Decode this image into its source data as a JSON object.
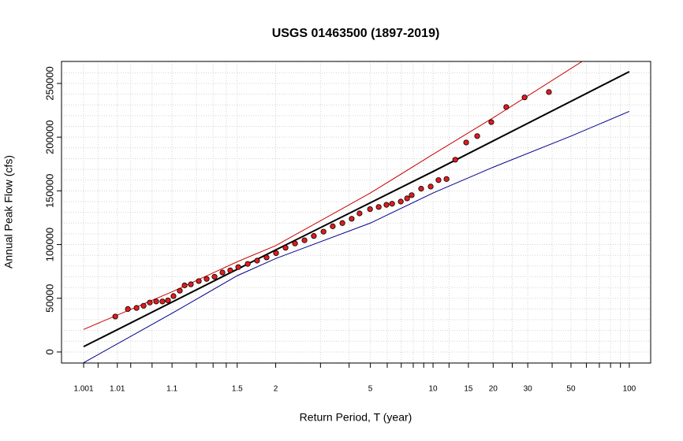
{
  "chart_data": {
    "type": "scatter",
    "title": "USGS 01463500 (1897-2019)",
    "xlabel": "Return Period, T (year)",
    "ylabel": "Annual Peak Flow (cfs)",
    "xscale": "gumbel",
    "xlim": [
      1.000123,
      129
    ],
    "ylim": [
      -10300,
      270500
    ],
    "xticks": [
      1.001,
      1.01,
      1.1,
      1.5,
      2,
      5,
      10,
      15,
      20,
      30,
      50,
      100
    ],
    "xminor": [
      1.003,
      1.02,
      1.05,
      1.2,
      1.3,
      1.4,
      3,
      4,
      6,
      7,
      8,
      9,
      12,
      25,
      40,
      60,
      70,
      80,
      90
    ],
    "yticks": [
      0,
      50000,
      100000,
      150000,
      200000,
      250000
    ],
    "yminor": [
      -10000,
      10000,
      20000,
      30000,
      40000,
      60000,
      70000,
      80000,
      90000,
      110000,
      120000,
      130000,
      140000,
      160000,
      170000,
      180000,
      190000,
      210000,
      220000,
      230000,
      240000,
      260000,
      270000
    ],
    "grid": true,
    "points": {
      "color": "#e31a1c",
      "edgecolor": "#000000",
      "x": [
        1.0089,
        1.0174,
        1.0262,
        1.0356,
        1.0458,
        1.0583,
        1.0728,
        1.0878,
        1.1047,
        1.1269,
        1.1456,
        1.173,
        1.2129,
        1.258,
        1.3101,
        1.3691,
        1.4347,
        1.5104,
        1.6116,
        1.7259,
        1.8574,
        2.0064,
        2.1744,
        2.3641,
        2.5773,
        2.8145,
        3.0902,
        3.3863,
        3.7313,
        4.1068,
        4.458,
        4.983,
        5.468,
        5.949,
        6.329,
        6.964,
        7.468,
        7.862,
        8.741,
        9.737,
        10.64,
        11.66,
        12.89,
        14.62,
        16.61,
        19.57,
        23.31,
        28.9,
        38.5
      ],
      "values": [
        33000,
        40000,
        41000,
        43000,
        46000,
        47000,
        47000,
        48000,
        52000,
        57000,
        62000,
        63000,
        66000,
        68000,
        70000,
        74000,
        76000,
        79000,
        82000,
        85000,
        88000,
        92000,
        97000,
        101000,
        104000,
        108000,
        112000,
        117000,
        120000,
        124000,
        129000,
        133000,
        135000,
        137000,
        138000,
        140000,
        143000,
        146000,
        152000,
        154000,
        160000,
        161000,
        179000,
        195000,
        201000,
        214000,
        228000,
        237000,
        242000
      ]
    },
    "lines": [
      {
        "color": "#000000",
        "width": 2,
        "x": [
          1.001,
          2,
          10,
          100
        ],
        "values": [
          5000,
          95000,
          168000,
          261000
        ]
      },
      {
        "color": "#cc0000",
        "width": 1,
        "x": [
          1.001,
          1.1,
          1.5,
          2,
          5,
          10,
          20,
          60
        ],
        "values": [
          21000,
          56000,
          84000,
          99000,
          148000,
          184000,
          218000,
          273000
        ]
      },
      {
        "color": "#00008b",
        "width": 1,
        "x": [
          1.001,
          1.1,
          1.5,
          2,
          5,
          10,
          20,
          50,
          100
        ],
        "values": [
          -10000,
          36000,
          71000,
          87000,
          120000,
          148000,
          172000,
          201000,
          224000
        ]
      }
    ]
  }
}
